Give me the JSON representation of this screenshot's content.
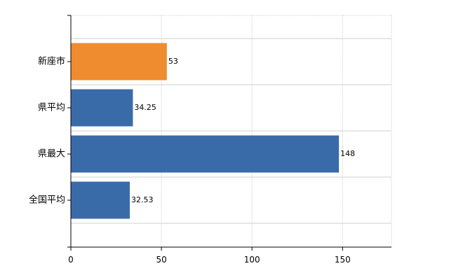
{
  "chart_data": {
    "type": "bar",
    "orientation": "horizontal",
    "categories": [
      "新座市",
      "県平均",
      "県最大",
      "全国平均"
    ],
    "values": [
      53,
      34.25,
      148,
      32.53
    ],
    "value_labels": [
      "53",
      "34.25",
      "148",
      "32.53"
    ],
    "bar_colors": [
      "#ee8c2f",
      "#3a6ba9",
      "#3a6ba9",
      "#3a6ba9"
    ],
    "xlim": [
      0,
      177
    ],
    "x_ticks": [
      0,
      50,
      100,
      150
    ],
    "x_tick_labels": [
      "0",
      "50",
      "100",
      "150"
    ],
    "grid": true,
    "title": "",
    "xlabel": "",
    "ylabel": ""
  }
}
